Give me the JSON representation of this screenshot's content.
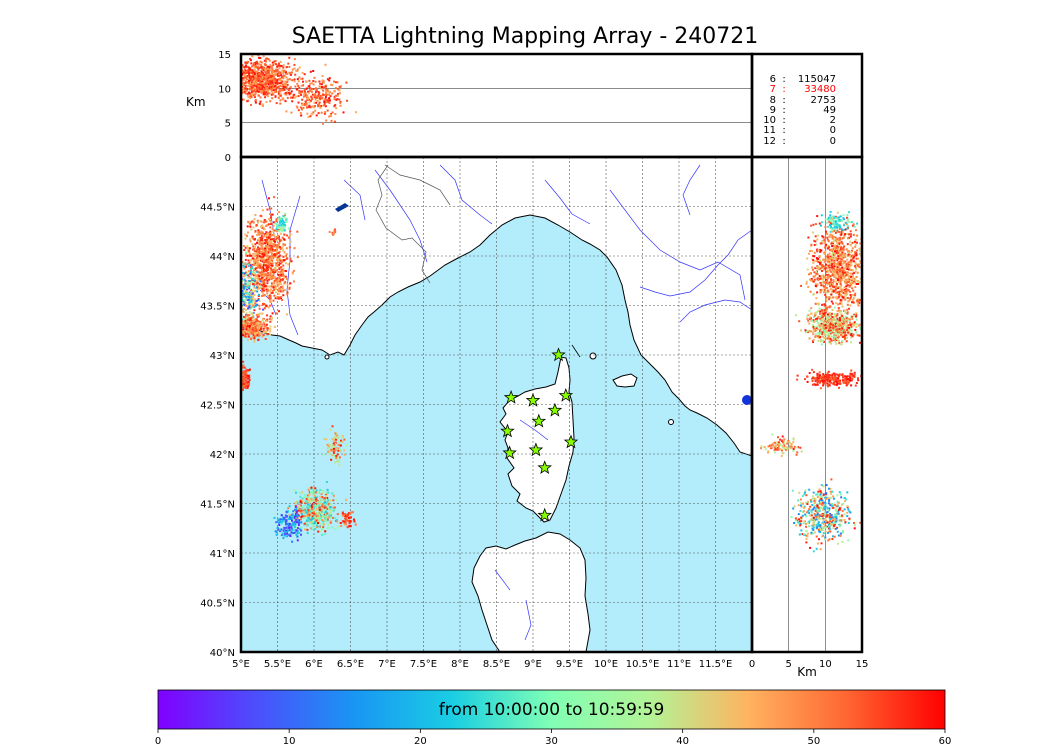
{
  "title": "SAETTA Lightning Mapping Array - 240721",
  "colorbar": {
    "label": "from 10:00:00 to 10:59:59",
    "ticks": [
      "0",
      "10",
      "20",
      "30",
      "40",
      "50",
      "60"
    ],
    "range": [
      0,
      60
    ],
    "colormap": "rainbow"
  },
  "stations_counts": [
    {
      "stations": "6",
      "sep": ":",
      "count": "115047",
      "color": "#000000"
    },
    {
      "stations": "7",
      "sep": ":",
      "count": "33480",
      "color": "#ff0000"
    },
    {
      "stations": "8",
      "sep": ":",
      "count": "2753",
      "color": "#000000"
    },
    {
      "stations": "9",
      "sep": ":",
      "count": "49",
      "color": "#000000"
    },
    {
      "stations": "10",
      "sep": ":",
      "count": "2",
      "color": "#000000"
    },
    {
      "stations": "11",
      "sep": ":",
      "count": "0",
      "color": "#000000"
    },
    {
      "stations": "12",
      "sep": ":",
      "count": "0",
      "color": "#000000"
    }
  ],
  "colors": {
    "sea": "#b3ecfb",
    "land": "#ffffff",
    "rivers": "#3333ff",
    "borders": "#555555",
    "stations": "#88ff00"
  },
  "chart_data": [
    {
      "type": "scatter",
      "panel": "map",
      "xlabel": "",
      "ylabel": "",
      "xlim": [
        5,
        12
      ],
      "ylim": [
        40,
        45
      ],
      "xticks": [
        "5°E",
        "5.5°E",
        "6°E",
        "6.5°E",
        "7°E",
        "7.5°E",
        "8°E",
        "8.5°E",
        "9°E",
        "9.5°E",
        "10°E",
        "10.5°E",
        "11°E",
        "11.5°E"
      ],
      "yticks": [
        "40°N",
        "40.5°N",
        "41°N",
        "41.5°N",
        "42°N",
        "42.5°N",
        "43°N",
        "43.5°N",
        "44°N",
        "44.5°N"
      ],
      "grid": true,
      "stations": [
        {
          "lon": 9.35,
          "lat": 43.0
        },
        {
          "lon": 8.7,
          "lat": 42.57
        },
        {
          "lon": 9.0,
          "lat": 42.54
        },
        {
          "lon": 9.45,
          "lat": 42.59
        },
        {
          "lon": 9.3,
          "lat": 42.44
        },
        {
          "lon": 9.08,
          "lat": 42.33
        },
        {
          "lon": 8.65,
          "lat": 42.23
        },
        {
          "lon": 9.52,
          "lat": 42.12
        },
        {
          "lon": 8.68,
          "lat": 42.01
        },
        {
          "lon": 9.04,
          "lat": 42.04
        },
        {
          "lon": 9.16,
          "lat": 41.86
        },
        {
          "lon": 9.16,
          "lat": 41.38
        }
      ],
      "lightning_clusters": [
        {
          "lon": 5.35,
          "lat": 43.95,
          "spread_lon": 0.15,
          "spread_lat": 0.22,
          "n": 900,
          "tmin": 42,
          "tmax": 60
        },
        {
          "lon": 5.07,
          "lat": 43.62,
          "spread_lon": 0.08,
          "spread_lat": 0.15,
          "n": 260,
          "tmin": 5,
          "tmax": 50
        },
        {
          "lon": 5.12,
          "lat": 43.3,
          "spread_lon": 0.12,
          "spread_lat": 0.06,
          "n": 380,
          "tmin": 40,
          "tmax": 60
        },
        {
          "lon": 5.55,
          "lat": 44.33,
          "spread_lon": 0.04,
          "spread_lat": 0.04,
          "n": 60,
          "tmin": 20,
          "tmax": 35
        },
        {
          "lon": 5.03,
          "lat": 42.78,
          "spread_lon": 0.04,
          "spread_lat": 0.06,
          "n": 120,
          "tmin": 50,
          "tmax": 60
        },
        {
          "lon": 6.0,
          "lat": 41.45,
          "spread_lon": 0.14,
          "spread_lat": 0.11,
          "n": 420,
          "tmin": 20,
          "tmax": 60
        },
        {
          "lon": 5.65,
          "lat": 41.3,
          "spread_lon": 0.1,
          "spread_lat": 0.08,
          "n": 150,
          "tmin": 2,
          "tmax": 25
        },
        {
          "lon": 6.28,
          "lat": 42.08,
          "spread_lon": 0.06,
          "spread_lat": 0.08,
          "n": 80,
          "tmin": 30,
          "tmax": 60
        },
        {
          "lon": 6.45,
          "lat": 41.35,
          "spread_lon": 0.06,
          "spread_lat": 0.05,
          "n": 60,
          "tmin": 45,
          "tmax": 60
        },
        {
          "lon": 6.25,
          "lat": 44.25,
          "spread_lon": 0.02,
          "spread_lat": 0.03,
          "n": 10,
          "tmin": 45,
          "tmax": 55
        }
      ]
    },
    {
      "type": "scatter",
      "panel": "altitude-vs-longitude",
      "ylabel": "Km",
      "ylim": [
        0,
        15
      ],
      "yticks": [
        "0",
        "5",
        "10",
        "15"
      ],
      "grid": true,
      "lightning_clusters": [
        {
          "lon": 5.25,
          "alt": 11.5,
          "spread_lon": 0.22,
          "spread_alt": 1.5,
          "n": 900,
          "tmin": 45,
          "tmax": 60
        },
        {
          "lon": 6.05,
          "alt": 9.0,
          "spread_lon": 0.18,
          "spread_alt": 1.6,
          "n": 260,
          "tmin": 45,
          "tmax": 60
        }
      ]
    },
    {
      "type": "scatter",
      "panel": "latitude-vs-altitude",
      "xlabel": "Km",
      "xlim": [
        0,
        15
      ],
      "xticks": [
        "0",
        "5",
        "10",
        "15"
      ],
      "grid": true,
      "lightning_clusters": [
        {
          "alt": 11.5,
          "lat": 43.9,
          "spread_alt": 1.8,
          "spread_lat": 0.22,
          "n": 900,
          "tmin": 40,
          "tmax": 60
        },
        {
          "alt": 11.0,
          "lat": 43.3,
          "spread_alt": 1.7,
          "spread_lat": 0.08,
          "n": 500,
          "tmin": 30,
          "tmax": 60
        },
        {
          "alt": 11.5,
          "lat": 44.35,
          "spread_alt": 1.0,
          "spread_lat": 0.04,
          "n": 80,
          "tmin": 20,
          "tmax": 35
        },
        {
          "alt": 11.0,
          "lat": 42.77,
          "spread_alt": 1.8,
          "spread_lat": 0.04,
          "n": 220,
          "tmin": 52,
          "tmax": 60
        },
        {
          "alt": 4.0,
          "lat": 42.09,
          "spread_alt": 1.2,
          "spread_lat": 0.04,
          "n": 100,
          "tmin": 35,
          "tmax": 60
        },
        {
          "alt": 9.5,
          "lat": 41.4,
          "spread_alt": 1.8,
          "spread_lat": 0.13,
          "n": 450,
          "tmin": 10,
          "tmax": 60
        }
      ]
    }
  ]
}
